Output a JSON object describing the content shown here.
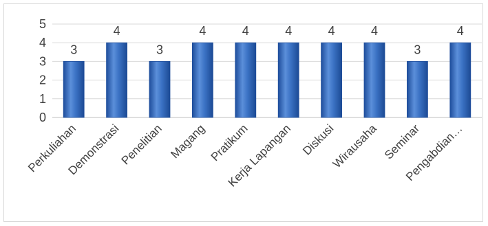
{
  "chart_data": {
    "type": "bar",
    "categories": [
      "Perkuliahan",
      "Demonstrasi",
      "Penelitian",
      "Magang",
      "Pratikum",
      "Kerja Lapangan",
      "Diskusi",
      "Wirausaha",
      "Seminar",
      "Pengabdian…"
    ],
    "values": [
      3,
      4,
      3,
      4,
      4,
      4,
      4,
      4,
      3,
      4
    ],
    "data_labels": [
      "3",
      "4",
      "3",
      "4",
      "4",
      "4",
      "4",
      "4",
      "3",
      "4"
    ],
    "y_ticks": [
      "0",
      "1",
      "2",
      "3",
      "4",
      "5"
    ],
    "ylim": [
      0,
      5
    ],
    "yaxis_scale_note": "tick labels 3 and 4 drawn by original",
    "grid": true,
    "legend": "none",
    "colors": {
      "bar": "#3b72c4",
      "bar_dark": "#1f4e9c",
      "bar_light": "#6fa0e0",
      "grid": "#d9d9d9",
      "text": "#404040"
    }
  }
}
